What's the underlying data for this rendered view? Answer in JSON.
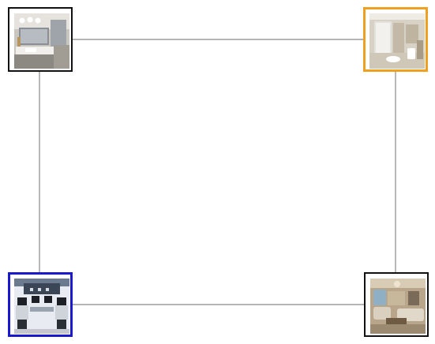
{
  "graph": {
    "nodes": [
      {
        "id": "top-left",
        "subject": "bathroom-vanity-photo",
        "state": "default",
        "border_color": "#111111"
      },
      {
        "id": "top-right",
        "subject": "bathroom-shower-photo",
        "state": "highlighted",
        "border_color": "#f0a020"
      },
      {
        "id": "bottom-left",
        "subject": "computer-lab-photo",
        "state": "selected",
        "border_color": "#1a1acc"
      },
      {
        "id": "bottom-right",
        "subject": "living-room-photo",
        "state": "default",
        "border_color": "#111111"
      }
    ],
    "edges": [
      {
        "from": "top-left",
        "to": "top-right"
      },
      {
        "from": "top-left",
        "to": "bottom-left"
      },
      {
        "from": "top-right",
        "to": "bottom-right"
      },
      {
        "from": "bottom-left",
        "to": "bottom-right"
      }
    ],
    "edge_color": "#888888"
  }
}
